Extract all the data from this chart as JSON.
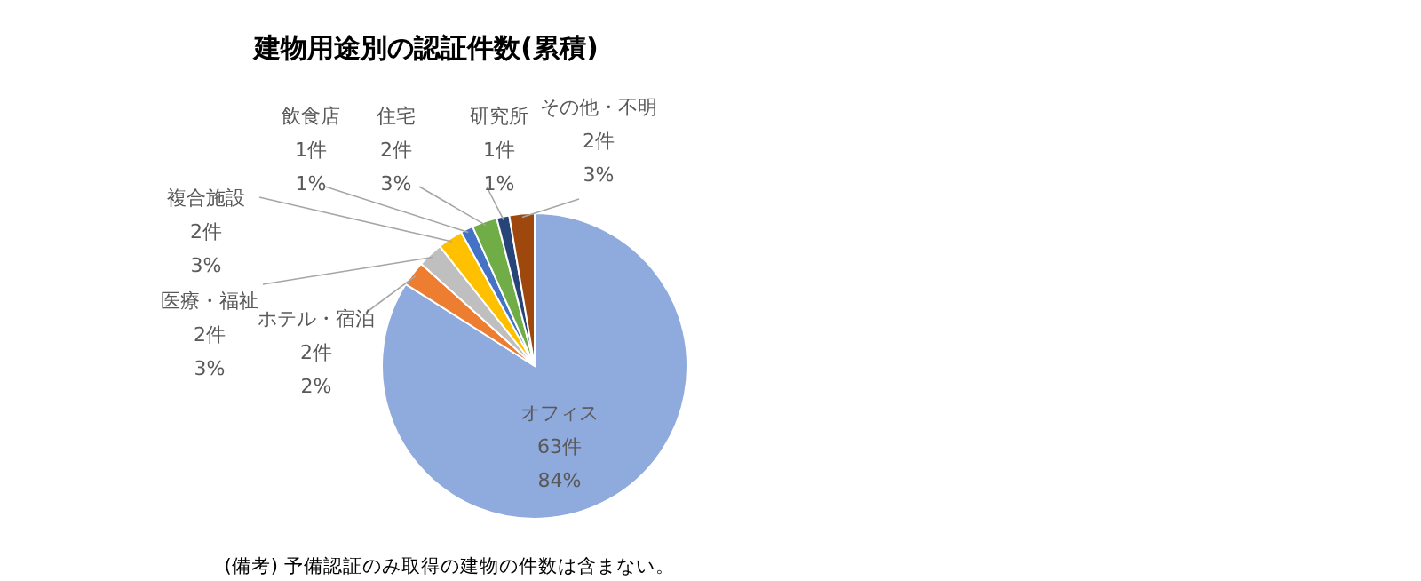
{
  "chart_data": {
    "type": "pie",
    "title": "建物用途別の認証件数(累積)",
    "categories": [
      "オフィス",
      "ホテル・宿泊",
      "医療・福祉",
      "複合施設",
      "飲食店",
      "住宅",
      "研究所",
      "その他・不明"
    ],
    "values": [
      63,
      2,
      2,
      2,
      1,
      2,
      1,
      2
    ],
    "value_labels": [
      "63件\n84%",
      "2件\n2%",
      "2件\n3%",
      "2件\n3%",
      "1件\n1%",
      "2件\n3%",
      "1件\n1%",
      "2件\n3%"
    ],
    "colors": [
      "#8faadc",
      "#ed7d31",
      "#bfbfbf",
      "#ffc000",
      "#4472c4",
      "#70ad47",
      "#264478",
      "#9e480e"
    ],
    "annotations": [
      "(備考) 予備認証のみ取得の建物の件数は含まない。"
    ]
  }
}
